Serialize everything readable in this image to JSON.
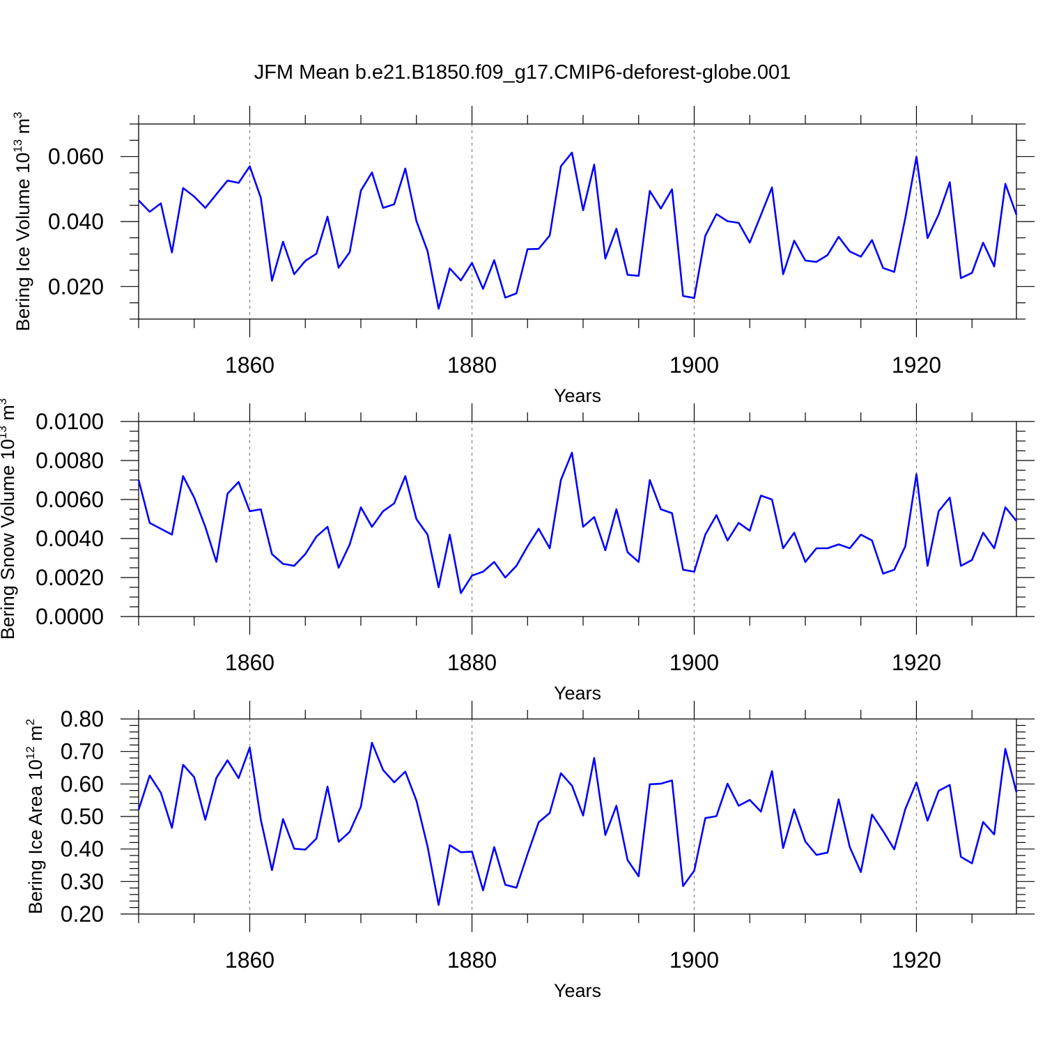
{
  "title": "JFM Mean b.e21.B1850.f09_g17.CMIP6-deforest-globe.001",
  "colors": {
    "line": "#0000ff",
    "axis": "#000000",
    "grid": "#808080"
  },
  "chart_data": [
    {
      "type": "line",
      "ylabel": {
        "text": "Bering Ice Volume 10",
        "sup": "13",
        "unit": " m",
        "unit_sup": "3"
      },
      "xlabel": "Years",
      "xlim": [
        1850,
        1929
      ],
      "ylim": [
        0.01,
        0.07
      ],
      "yticks": [
        0.02,
        0.04,
        0.06
      ],
      "ytick_labels": [
        "0.020",
        "0.040",
        "0.060"
      ],
      "yminor": [
        0.01,
        0.015,
        0.025,
        0.03,
        0.035,
        0.045,
        0.05,
        0.055,
        0.065,
        0.07
      ],
      "xticks": [
        1860,
        1880,
        1900,
        1920
      ],
      "xtick_labels": [
        "1860",
        "1880",
        "1900",
        "1920"
      ],
      "x_start": 1850,
      "values": [
        0.0465,
        0.043,
        0.0456,
        0.0305,
        0.0503,
        0.0477,
        0.0442,
        0.0484,
        0.0526,
        0.0519,
        0.057,
        0.0473,
        0.0218,
        0.0338,
        0.0238,
        0.0279,
        0.0301,
        0.0415,
        0.0258,
        0.0306,
        0.0495,
        0.0551,
        0.0442,
        0.0453,
        0.0563,
        0.0402,
        0.0309,
        0.0132,
        0.0256,
        0.0219,
        0.0273,
        0.0193,
        0.0281,
        0.0166,
        0.0179,
        0.0315,
        0.0316,
        0.0357,
        0.057,
        0.0612,
        0.0435,
        0.0575,
        0.0286,
        0.0378,
        0.0236,
        0.0233,
        0.0494,
        0.044,
        0.0499,
        0.0171,
        0.0165,
        0.0356,
        0.0423,
        0.0401,
        0.0396,
        0.0335,
        0.042,
        0.0505,
        0.0238,
        0.0341,
        0.028,
        0.0276,
        0.0297,
        0.0353,
        0.0308,
        0.0292,
        0.0343,
        0.0257,
        0.0245,
        0.0411,
        0.0599,
        0.0349,
        0.0422,
        0.0521,
        0.0226,
        0.0242,
        0.0335,
        0.0262,
        0.0516,
        0.0421
      ]
    },
    {
      "type": "line",
      "ylabel": {
        "text": "Bering Snow Volume 10",
        "sup": "13",
        "unit": " m",
        "unit_sup": "3"
      },
      "xlabel": "Years",
      "xlim": [
        1850,
        1929
      ],
      "ylim": [
        0.0,
        0.01
      ],
      "yticks": [
        0.0,
        0.002,
        0.004,
        0.006,
        0.008,
        0.01
      ],
      "ytick_labels": [
        "0.0000",
        "0.0020",
        "0.0040",
        "0.0060",
        "0.0080",
        "0.0100"
      ],
      "yminor": [
        0.0005,
        0.001,
        0.0015,
        0.0025,
        0.003,
        0.0035,
        0.0045,
        0.005,
        0.0055,
        0.0065,
        0.007,
        0.0075,
        0.0085,
        0.009,
        0.0095
      ],
      "xticks": [
        1860,
        1880,
        1900,
        1920
      ],
      "xtick_labels": [
        "1860",
        "1880",
        "1900",
        "1920"
      ],
      "x_start": 1850,
      "values": [
        0.007,
        0.0048,
        0.0045,
        0.0042,
        0.0072,
        0.0061,
        0.0046,
        0.0028,
        0.0063,
        0.0069,
        0.0054,
        0.0055,
        0.0032,
        0.0027,
        0.0026,
        0.0032,
        0.0041,
        0.0046,
        0.0025,
        0.0037,
        0.0056,
        0.0046,
        0.0054,
        0.0058,
        0.0072,
        0.005,
        0.0042,
        0.0015,
        0.0042,
        0.0012,
        0.0021,
        0.0023,
        0.0028,
        0.002,
        0.0026,
        0.0036,
        0.0045,
        0.0035,
        0.007,
        0.0084,
        0.0046,
        0.0051,
        0.0034,
        0.0055,
        0.0033,
        0.0028,
        0.007,
        0.0055,
        0.0053,
        0.0024,
        0.0023,
        0.0042,
        0.0052,
        0.0039,
        0.0048,
        0.0044,
        0.0062,
        0.006,
        0.0035,
        0.0043,
        0.0028,
        0.0035,
        0.0035,
        0.0037,
        0.0035,
        0.0042,
        0.0039,
        0.0022,
        0.0024,
        0.0036,
        0.0073,
        0.0026,
        0.0054,
        0.0061,
        0.0026,
        0.0029,
        0.0043,
        0.0035,
        0.0056,
        0.0049
      ]
    },
    {
      "type": "line",
      "ylabel": {
        "text": "Bering Ice Area 10",
        "sup": "12",
        "unit": " m",
        "unit_sup": "2"
      },
      "xlabel": "Years",
      "xlim": [
        1850,
        1929
      ],
      "ylim": [
        0.2,
        0.8
      ],
      "yticks": [
        0.2,
        0.3,
        0.4,
        0.5,
        0.6,
        0.7,
        0.8
      ],
      "ytick_labels": [
        "0.20",
        "0.30",
        "0.40",
        "0.50",
        "0.60",
        "0.70",
        "0.80"
      ],
      "yminor": [
        0.22,
        0.24,
        0.26,
        0.28,
        0.32,
        0.34,
        0.36,
        0.38,
        0.42,
        0.44,
        0.46,
        0.48,
        0.52,
        0.54,
        0.56,
        0.58,
        0.62,
        0.64,
        0.66,
        0.68,
        0.72,
        0.74,
        0.76,
        0.78
      ],
      "xticks": [
        1860,
        1880,
        1900,
        1920
      ],
      "xtick_labels": [
        "1860",
        "1880",
        "1900",
        "1920"
      ],
      "x_start": 1850,
      "values": [
        0.521,
        0.626,
        0.573,
        0.465,
        0.659,
        0.621,
        0.49,
        0.619,
        0.673,
        0.618,
        0.712,
        0.49,
        0.335,
        0.492,
        0.401,
        0.398,
        0.432,
        0.592,
        0.422,
        0.453,
        0.53,
        0.727,
        0.643,
        0.605,
        0.638,
        0.549,
        0.408,
        0.228,
        0.412,
        0.39,
        0.392,
        0.273,
        0.406,
        0.29,
        0.281,
        0.384,
        0.482,
        0.511,
        0.633,
        0.595,
        0.503,
        0.68,
        0.443,
        0.533,
        0.366,
        0.316,
        0.599,
        0.601,
        0.611,
        0.286,
        0.333,
        0.495,
        0.501,
        0.601,
        0.533,
        0.551,
        0.515,
        0.64,
        0.403,
        0.522,
        0.423,
        0.382,
        0.389,
        0.553,
        0.406,
        0.329,
        0.506,
        0.455,
        0.399,
        0.523,
        0.605,
        0.487,
        0.579,
        0.597,
        0.376,
        0.356,
        0.483,
        0.445,
        0.708,
        0.575
      ]
    }
  ]
}
